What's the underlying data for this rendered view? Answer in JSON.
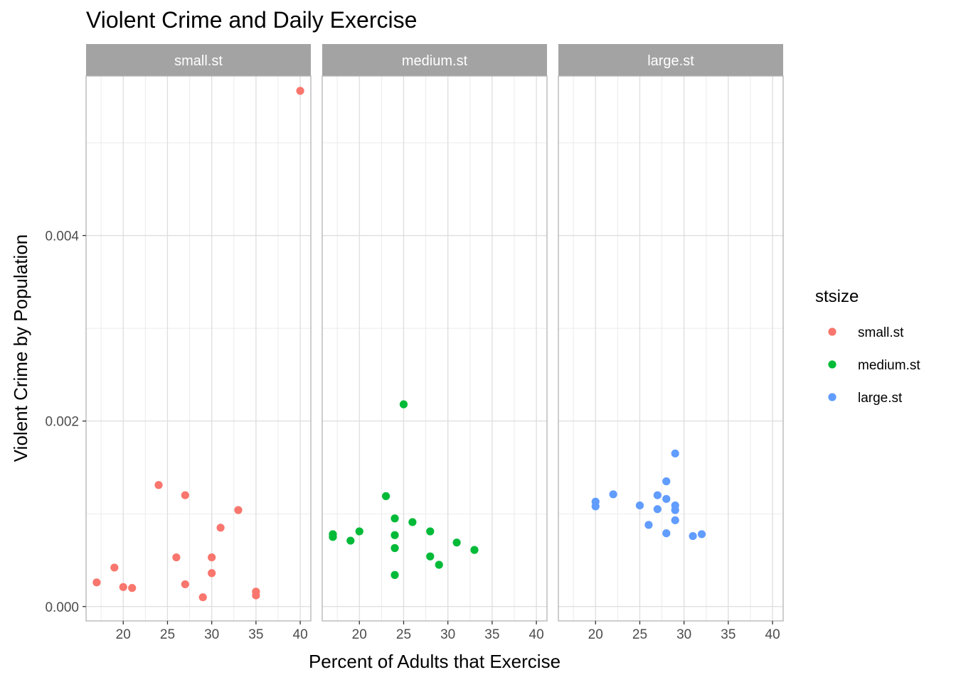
{
  "chart_data": {
    "type": "scatter",
    "title": "Violent Crime and Daily Exercise",
    "xlabel": "Percent of Adults that Exercise",
    "ylabel": "Violent Crime by Population",
    "xlim": [
      15.8,
      41.2
    ],
    "ylim": [
      -0.000155,
      0.00572
    ],
    "x_ticks": [
      20,
      25,
      30,
      35,
      40
    ],
    "y_ticks": [
      0.0,
      0.002,
      0.004
    ],
    "y_tick_labels": [
      "0.000",
      "0.002",
      "0.004"
    ],
    "grid": true,
    "legend": {
      "title": "stsize",
      "placement": "right",
      "entries": [
        {
          "label": "small.st",
          "color": "#F8766D"
        },
        {
          "label": "medium.st",
          "color": "#00BA38"
        },
        {
          "label": "large.st",
          "color": "#619CFF"
        }
      ]
    },
    "facets": [
      {
        "label": "small.st",
        "color": "#F8766D",
        "points": [
          [
            17,
            0.00026
          ],
          [
            19,
            0.00042
          ],
          [
            20,
            0.00021
          ],
          [
            21,
            0.0002
          ],
          [
            24,
            0.00131
          ],
          [
            26,
            0.00053
          ],
          [
            27,
            0.0012
          ],
          [
            27,
            0.00024
          ],
          [
            29,
            0.0001
          ],
          [
            30,
            0.00053
          ],
          [
            30,
            0.00036
          ],
          [
            31,
            0.00085
          ],
          [
            33,
            0.00104
          ],
          [
            35,
            0.00016
          ],
          [
            35,
            0.00012
          ],
          [
            40,
            0.00556
          ]
        ]
      },
      {
        "label": "medium.st",
        "color": "#00BA38",
        "points": [
          [
            17,
            0.00078
          ],
          [
            17,
            0.00075
          ],
          [
            19,
            0.00071
          ],
          [
            20,
            0.00081
          ],
          [
            23,
            0.00119
          ],
          [
            24,
            0.00095
          ],
          [
            24,
            0.00077
          ],
          [
            24,
            0.00063
          ],
          [
            24,
            0.00034
          ],
          [
            25,
            0.00218
          ],
          [
            26,
            0.00091
          ],
          [
            28,
            0.00081
          ],
          [
            28,
            0.00054
          ],
          [
            29,
            0.00045
          ],
          [
            31,
            0.00069
          ],
          [
            33,
            0.00061
          ]
        ]
      },
      {
        "label": "large.st",
        "color": "#619CFF",
        "points": [
          [
            20,
            0.00113
          ],
          [
            20,
            0.00108
          ],
          [
            22,
            0.00121
          ],
          [
            25,
            0.00109
          ],
          [
            26,
            0.00088
          ],
          [
            27,
            0.0012
          ],
          [
            27,
            0.00105
          ],
          [
            28,
            0.00135
          ],
          [
            28,
            0.00116
          ],
          [
            28,
            0.00079
          ],
          [
            29,
            0.00165
          ],
          [
            29,
            0.00109
          ],
          [
            29,
            0.00104
          ],
          [
            29,
            0.00093
          ],
          [
            31,
            0.00076
          ],
          [
            32,
            0.00078
          ]
        ]
      }
    ]
  }
}
